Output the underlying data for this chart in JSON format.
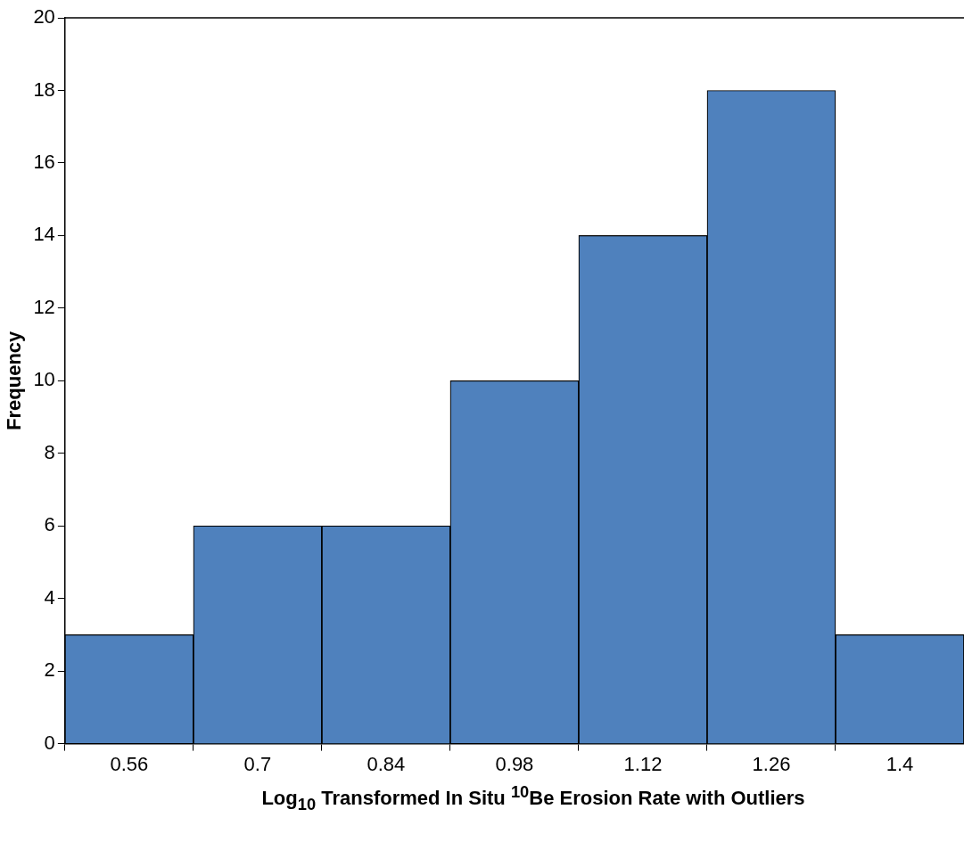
{
  "chart_data": {
    "type": "bar",
    "xlabel": "Log$_{10}$ Transformed In Situ $^{10}$Be Erosion Rate with Outliers",
    "ylabel": "Frequency",
    "categories": [
      "0.56",
      "0.7",
      "0.84",
      "0.98",
      "1.12",
      "1.26",
      "1.4"
    ],
    "values": [
      3,
      6,
      6,
      10,
      14,
      18,
      3
    ],
    "color": "#4f81bd",
    "ylim": [
      0,
      20
    ],
    "yticks": [
      0,
      2,
      4,
      6,
      8,
      10,
      12,
      14,
      16,
      18,
      20
    ]
  }
}
